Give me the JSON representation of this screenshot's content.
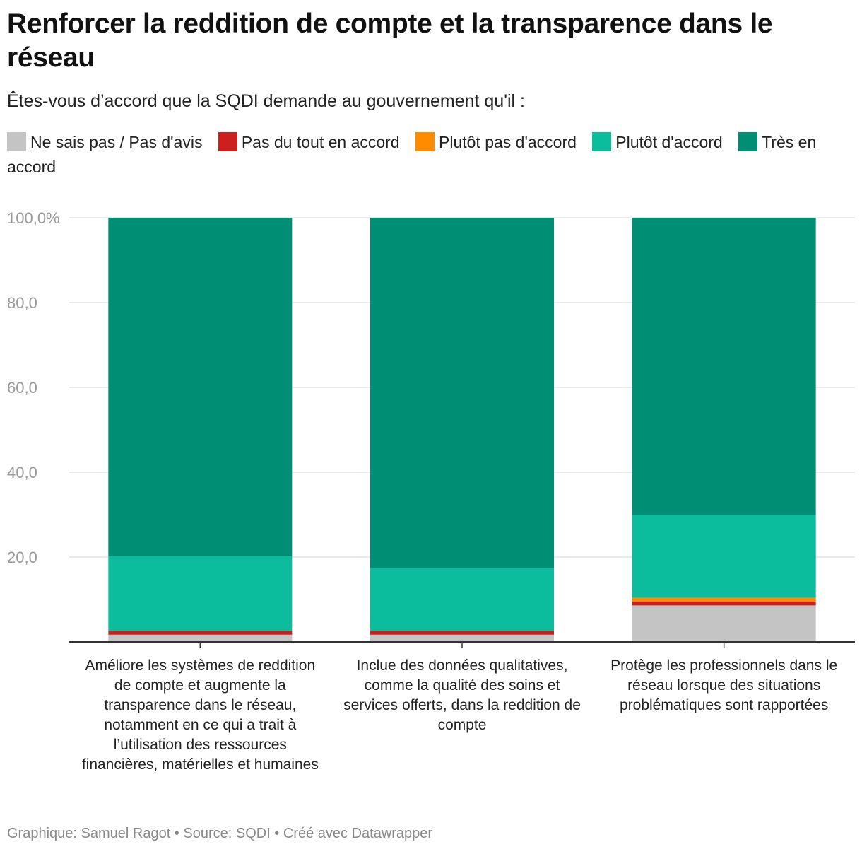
{
  "chart_data": {
    "type": "bar",
    "stacked": true,
    "title": "Renforcer la reddition de compte et la transparence dans le réseau",
    "subtitle": "Êtes-vous d’accord que la SQDI demande au gouvernement qu'il :",
    "categories": [
      "Améliore les systèmes de reddition de compte et augmente la transparence dans le réseau, notamment en ce qui a trait à l’utilisation des ressources financières, matérielles et humaines",
      "Inclue des données qualitatives, comme la qualité des soins et services offerts, dans la reddition de compte",
      "Protège les professionnels dans le réseau lorsque des situations problématiques sont rapportées"
    ],
    "series": [
      {
        "name": "Ne sais pas / Pas d'avis",
        "color": "#c4c4c4",
        "values": [
          1.7,
          1.7,
          8.6
        ]
      },
      {
        "name": "Pas du tout en accord",
        "color": "#cc1f1f",
        "values": [
          0.9,
          0.9,
          0.9
        ]
      },
      {
        "name": "Plutôt pas d'accord",
        "color": "#ff8c00",
        "values": [
          0,
          0,
          0.9
        ]
      },
      {
        "name": "Plutôt d'accord",
        "color": "#0bbc9d",
        "values": [
          17.6,
          14.8,
          19.6
        ]
      },
      {
        "name": "Très en accord",
        "color": "#008f74",
        "values": [
          79.8,
          82.6,
          70.0
        ]
      }
    ],
    "ylim": [
      0,
      100
    ],
    "yticks": [
      {
        "value": 20,
        "label": "20,0"
      },
      {
        "value": 40,
        "label": "40,0"
      },
      {
        "value": 60,
        "label": "60,0"
      },
      {
        "value": 80,
        "label": "80,0"
      },
      {
        "value": 100,
        "label": "100,0%"
      }
    ],
    "grid": true,
    "legend_position": "top"
  },
  "footer": "Graphique: Samuel Ragot • Source: SQDI • Créé avec Datawrapper"
}
